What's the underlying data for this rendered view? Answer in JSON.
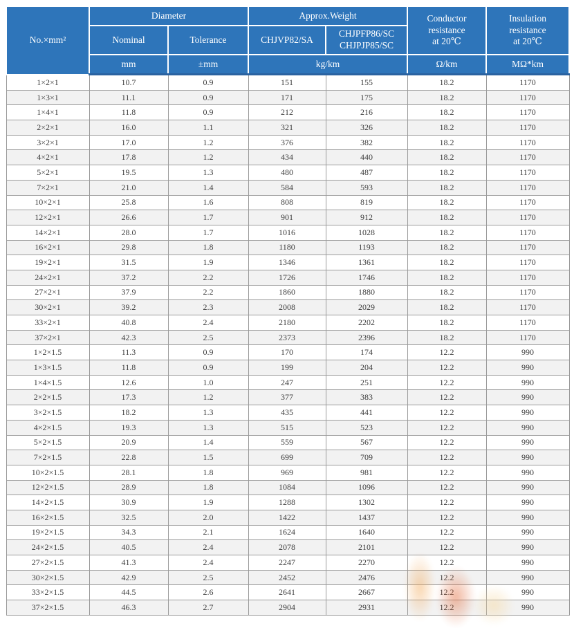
{
  "colors": {
    "header_bg": "#2e75ba",
    "header_text": "#ffffff",
    "row_alt_bg": "#f2f2f2",
    "body_border": "#9a9a9a",
    "watermark_orange": "#e0622f",
    "watermark_light_orange": "#f2a653",
    "watermark_pale_yellow": "#f6d9a2"
  },
  "table": {
    "header": {
      "col_spec": "No.×mm²",
      "diameter": "Diameter",
      "nominal": "Nominal",
      "tolerance": "Tolerance",
      "weight": "Approx.Weight",
      "weight_model_1": "CHJVP82/SA",
      "weight_model_2": "CHJPFP86/SC\nCHJPJP85/SC",
      "conductor_resistance": "Conductor\nresistance\nat 20℃",
      "insulation_resistance": "Insulation\nresistance\nat 20℃",
      "unit_nominal": "mm",
      "unit_tolerance": "±mm",
      "unit_weight": "kg/km",
      "unit_conductor": "Ω/km",
      "unit_insulation": "MΩ*km"
    },
    "columns_order": [
      "spec",
      "nominal_mm",
      "tolerance_mm",
      "weight_chjvp82_sa_kg_km",
      "weight_chjpfp86_chjpjp85_kg_km",
      "conductor_resistance_ohm_km",
      "insulation_resistance_mohm_km"
    ],
    "rows": [
      [
        "1×2×1",
        "10.7",
        "0.9",
        "151",
        "155",
        "18.2",
        "1170"
      ],
      [
        "1×3×1",
        "11.1",
        "0.9",
        "171",
        "175",
        "18.2",
        "1170"
      ],
      [
        "1×4×1",
        "11.8",
        "0.9",
        "212",
        "216",
        "18.2",
        "1170"
      ],
      [
        "2×2×1",
        "16.0",
        "1.1",
        "321",
        "326",
        "18.2",
        "1170"
      ],
      [
        "3×2×1",
        "17.0",
        "1.2",
        "376",
        "382",
        "18.2",
        "1170"
      ],
      [
        "4×2×1",
        "17.8",
        "1.2",
        "434",
        "440",
        "18.2",
        "1170"
      ],
      [
        "5×2×1",
        "19.5",
        "1.3",
        "480",
        "487",
        "18.2",
        "1170"
      ],
      [
        "7×2×1",
        "21.0",
        "1.4",
        "584",
        "593",
        "18.2",
        "1170"
      ],
      [
        "10×2×1",
        "25.8",
        "1.6",
        "808",
        "819",
        "18.2",
        "1170"
      ],
      [
        "12×2×1",
        "26.6",
        "1.7",
        "901",
        "912",
        "18.2",
        "1170"
      ],
      [
        "14×2×1",
        "28.0",
        "1.7",
        "1016",
        "1028",
        "18.2",
        "1170"
      ],
      [
        "16×2×1",
        "29.8",
        "1.8",
        "1180",
        "1193",
        "18.2",
        "1170"
      ],
      [
        "19×2×1",
        "31.5",
        "1.9",
        "1346",
        "1361",
        "18.2",
        "1170"
      ],
      [
        "24×2×1",
        "37.2",
        "2.2",
        "1726",
        "1746",
        "18.2",
        "1170"
      ],
      [
        "27×2×1",
        "37.9",
        "2.2",
        "1860",
        "1880",
        "18.2",
        "1170"
      ],
      [
        "30×2×1",
        "39.2",
        "2.3",
        "2008",
        "2029",
        "18.2",
        "1170"
      ],
      [
        "33×2×1",
        "40.8",
        "2.4",
        "2180",
        "2202",
        "18.2",
        "1170"
      ],
      [
        "37×2×1",
        "42.3",
        "2.5",
        "2373",
        "2396",
        "18.2",
        "1170"
      ],
      [
        "1×2×1.5",
        "11.3",
        "0.9",
        "170",
        "174",
        "12.2",
        "990"
      ],
      [
        "1×3×1.5",
        "11.8",
        "0.9",
        "199",
        "204",
        "12.2",
        "990"
      ],
      [
        "1×4×1.5",
        "12.6",
        "1.0",
        "247",
        "251",
        "12.2",
        "990"
      ],
      [
        "2×2×1.5",
        "17.3",
        "1.2",
        "377",
        "383",
        "12.2",
        "990"
      ],
      [
        "3×2×1.5",
        "18.2",
        "1.3",
        "435",
        "441",
        "12.2",
        "990"
      ],
      [
        "4×2×1.5",
        "19.3",
        "1.3",
        "515",
        "523",
        "12.2",
        "990"
      ],
      [
        "5×2×1.5",
        "20.9",
        "1.4",
        "559",
        "567",
        "12.2",
        "990"
      ],
      [
        "7×2×1.5",
        "22.8",
        "1.5",
        "699",
        "709",
        "12.2",
        "990"
      ],
      [
        "10×2×1.5",
        "28.1",
        "1.8",
        "969",
        "981",
        "12.2",
        "990"
      ],
      [
        "12×2×1.5",
        "28.9",
        "1.8",
        "1084",
        "1096",
        "12.2",
        "990"
      ],
      [
        "14×2×1.5",
        "30.9",
        "1.9",
        "1288",
        "1302",
        "12.2",
        "990"
      ],
      [
        "16×2×1.5",
        "32.5",
        "2.0",
        "1422",
        "1437",
        "12.2",
        "990"
      ],
      [
        "19×2×1.5",
        "34.3",
        "2.1",
        "1624",
        "1640",
        "12.2",
        "990"
      ],
      [
        "24×2×1.5",
        "40.5",
        "2.4",
        "2078",
        "2101",
        "12.2",
        "990"
      ],
      [
        "27×2×1.5",
        "41.3",
        "2.4",
        "2247",
        "2270",
        "12.2",
        "990"
      ],
      [
        "30×2×1.5",
        "42.9",
        "2.5",
        "2452",
        "2476",
        "12.2",
        "990"
      ],
      [
        "33×2×1.5",
        "44.5",
        "2.6",
        "2641",
        "2667",
        "12.2",
        "990"
      ],
      [
        "37×2×1.5",
        "46.3",
        "2.7",
        "2904",
        "2931",
        "12.2",
        "990"
      ]
    ]
  }
}
